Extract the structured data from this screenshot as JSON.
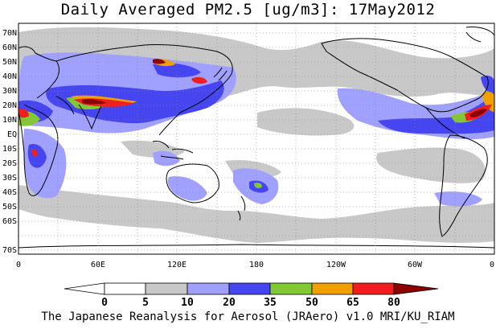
{
  "title": "Daily Averaged PM2.5 [ug/m3]: 17May2012",
  "map": {
    "lat_labels": [
      "70N",
      "60N",
      "50N",
      "40N",
      "30N",
      "20N",
      "10N",
      "EQ",
      "10S",
      "20S",
      "30S",
      "40S",
      "50S",
      "60S",
      "70S"
    ],
    "lon_labels": [
      "0",
      "60E",
      "120E",
      "180",
      "120W",
      "60W",
      "0"
    ]
  },
  "colorbar": {
    "colors": [
      "#ffffff",
      "#c8c8c8",
      "#a0a0ff",
      "#4646f0",
      "#82c832",
      "#f0a000",
      "#f01e1e",
      "#8c0000"
    ],
    "labels": [
      "0",
      "5",
      "10",
      "20",
      "35",
      "50",
      "65",
      "80"
    ]
  },
  "footer": "The Japanese Reanalysis for Aerosol (JRAero) v1.0 MRI/KU_RIAM"
}
